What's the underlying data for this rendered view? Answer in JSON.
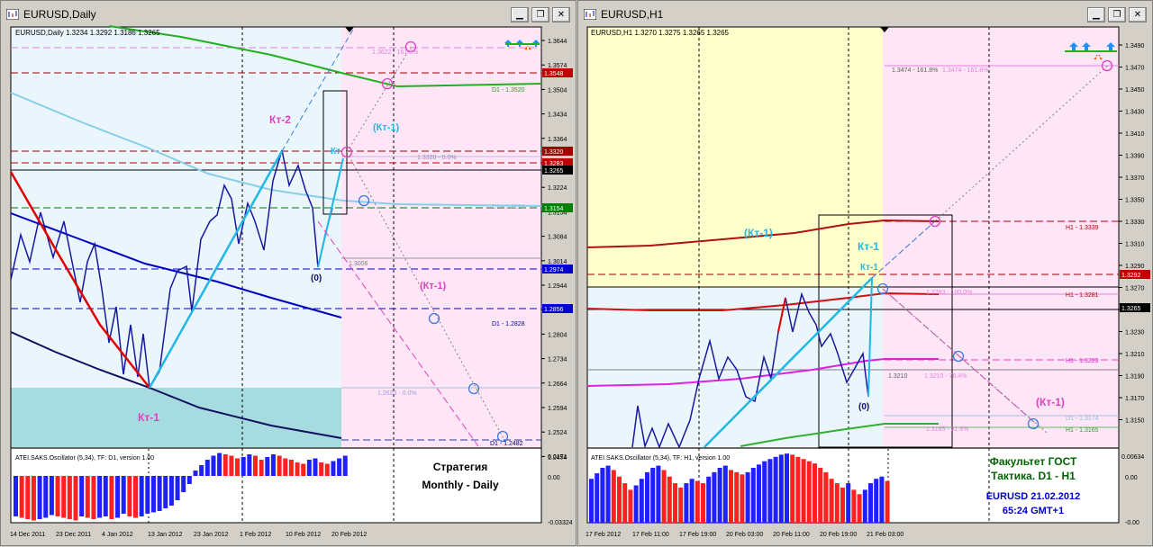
{
  "left": {
    "title": "EURUSD,Daily",
    "header": "EURUSD,Daily  1.3234 1.3292 1.3186 1.3265",
    "price_ticks": [
      "1.3644",
      "1.3574",
      "1.3504",
      "1.3434",
      "1.3364",
      "1.3294",
      "1.3224",
      "1.3154",
      "1.3084",
      "1.3014",
      "1.2944",
      "1.2874",
      "1.2804",
      "1.2734",
      "1.2664",
      "1.2594",
      "1.2524",
      "1.2454"
    ],
    "price_labels": [
      {
        "text": "1.3548",
        "bg": "#c00000"
      },
      {
        "text": "1.3320",
        "bg": "#a00000"
      },
      {
        "text": "1.3283",
        "bg": "#c00000"
      },
      {
        "text": "1.3265",
        "bg": "#000000"
      },
      {
        "text": "1.3154",
        "bg": "#008000"
      },
      {
        "text": "1.2974",
        "bg": "#0000d0"
      },
      {
        "text": "1.2856",
        "bg": "#0000d0"
      }
    ],
    "level_texts": [
      "1.3622 - 161.8%",
      "D1 - 1.3520",
      "1.3320 - 0.0%",
      "D1 - 1.3126",
      "1.3006",
      "D1 - 1.2828",
      "1.2623 - 0.0%",
      "D1 - 1.2482"
    ],
    "labels": {
      "kt2": "Кт-2",
      "kt1_cyan": "(Кт-1)",
      "kt_small": "Кт",
      "zero": "(0)",
      "kt1_mag": "(Кт-1)",
      "kt1_bottom": "Кт-1"
    },
    "osc_header": "ATEI.SAKS.Oscillator (5,34), TF: D1,  version 1.00",
    "osc_ticks": [
      "0.0171",
      "0.00",
      "-0.03324"
    ],
    "dates": [
      "14 Dec 2011",
      "23 Dec 2011",
      "4 Jan 2012",
      "13 Jan 2012",
      "23 Jan 2012",
      "1 Feb 2012",
      "10 Feb 2012",
      "20 Feb 2012"
    ],
    "strategy": [
      "Стратегия",
      "Monthly - Daily"
    ]
  },
  "right": {
    "title": "EURUSD,H1",
    "header": "EURUSD,H1  1.3270 1.3275 1.3265 1.3265",
    "price_ticks": [
      "1.3490",
      "1.3470",
      "1.3450",
      "1.3430",
      "1.3410",
      "1.3390",
      "1.3370",
      "1.3350",
      "1.3330",
      "1.3310",
      "1.3290",
      "1.3270",
      "1.3250",
      "1.3230",
      "1.3210",
      "1.3190",
      "1.3170",
      "1.3150"
    ],
    "price_labels": [
      {
        "text": "1.3292",
        "bg": "#c00000"
      },
      {
        "text": "1.3265",
        "bg": "#000000"
      }
    ],
    "level_texts": [
      "1.3474 - 161.8%",
      "1.3474 - 161.8%",
      "H1 - 1.3339",
      "1.3283 - 100.0%",
      "H1 - 1.3281",
      "H1 - 1.3223",
      "1.3210",
      "1.3210 - 76.4%",
      "D1 - 1.3174",
      "1.3165 - 61.8%",
      "H1 - 1.3165"
    ],
    "labels": {
      "kt1_top": "(Кт-1)",
      "kt1_blue": "Кт-1",
      "kt1_small": "Кт-1",
      "zero": "(0)",
      "kt1_mag": "(Кт-1)"
    },
    "osc_header": "ATEI.SAKS.Oscillator (5,34), TF: H1,  version 1.00",
    "osc_ticks": [
      "0.00634",
      "0.00",
      "-0.00"
    ],
    "dates": [
      "17 Feb 2012",
      "17 Feb 11:00",
      "17 Feb 19:00",
      "20 Feb 03:00",
      "20 Feb 11:00",
      "20 Feb 19:00",
      "21 Feb 03:00"
    ],
    "notes_green": [
      "Факультет ГОСТ",
      "Тактика. D1 - H1"
    ],
    "notes_blue": [
      "EURUSD 21.02.2012",
      "65:24 GMT+1"
    ]
  },
  "colors": {
    "bg_light": "#eaf6fb",
    "pink": "#ffe6f6",
    "yellow": "#ffffcc",
    "teal": "#a6dce0",
    "bull": "#2020ff",
    "bear": "#ff2020"
  }
}
